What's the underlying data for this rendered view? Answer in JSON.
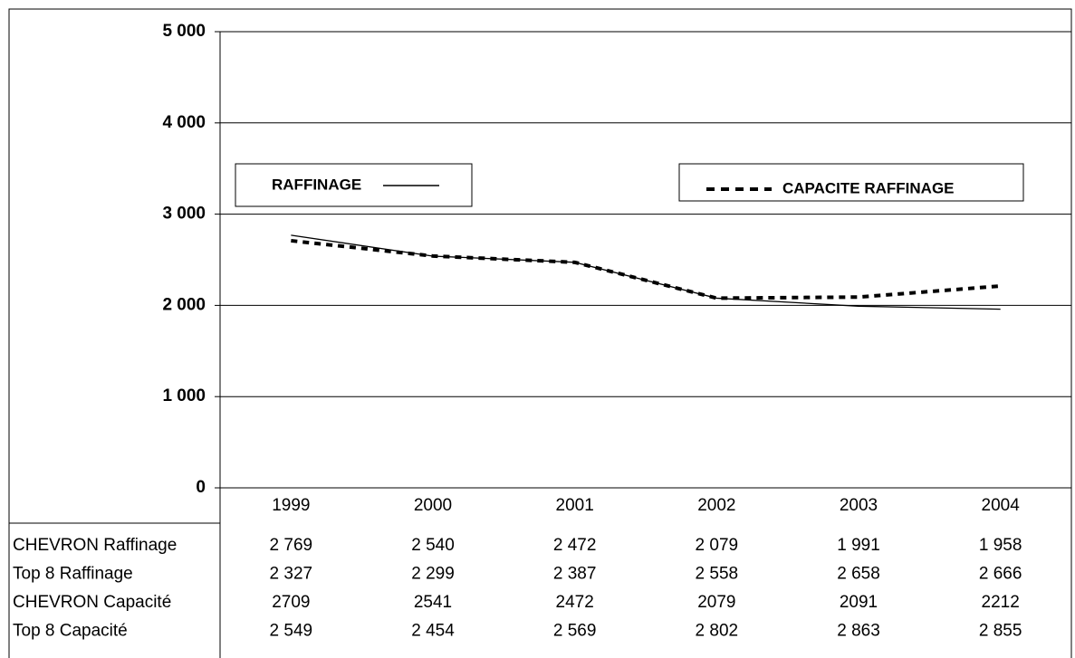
{
  "chart_data": {
    "type": "line",
    "categories": [
      "1999",
      "2000",
      "2001",
      "2002",
      "2003",
      "2004"
    ],
    "series": [
      {
        "name": "CHEVRON Raffinage",
        "color": "#000000",
        "line_style": "solid",
        "plotted": true,
        "values": [
          2769,
          2540,
          2472,
          2079,
          1991,
          1958
        ],
        "value_labels": [
          "2 769",
          "2 540",
          "2 472",
          "2 079",
          "1 991",
          "1 958"
        ]
      },
      {
        "name": "Top 8 Raffinage",
        "color": "#000000",
        "plotted": false,
        "values": [
          2327,
          2299,
          2387,
          2558,
          2658,
          2666
        ],
        "value_labels": [
          "2 327",
          "2 299",
          "2 387",
          "2 558",
          "2 658",
          "2 666"
        ]
      },
      {
        "name": "CHEVRON Capacité",
        "color": "#000000",
        "line_style": "dotted",
        "plotted": true,
        "values": [
          2709,
          2541,
          2472,
          2079,
          2091,
          2212
        ]
      },
      {
        "name": "Top 8 Capacité",
        "color": "#000000",
        "plotted": false,
        "values": [
          2549,
          2454,
          2569,
          2802,
          2863,
          2855
        ],
        "value_labels": [
          "2 549",
          "2 454",
          "2 569",
          "2 802",
          "2 863",
          "2 855"
        ]
      }
    ],
    "annotations": [
      "RAFFINAGE",
      "CAPACITE RAFFINAGE"
    ],
    "ylim": [
      0,
      5000
    ],
    "yticks": [
      {
        "value": 0,
        "label": "0"
      },
      {
        "value": 1000,
        "label": "1 000"
      },
      {
        "value": 2000,
        "label": "2 000"
      },
      {
        "value": 3000,
        "label": "3 000"
      },
      {
        "value": 4000,
        "label": "4 000"
      },
      {
        "value": 5000,
        "label": "5 000"
      }
    ],
    "grid": true
  }
}
